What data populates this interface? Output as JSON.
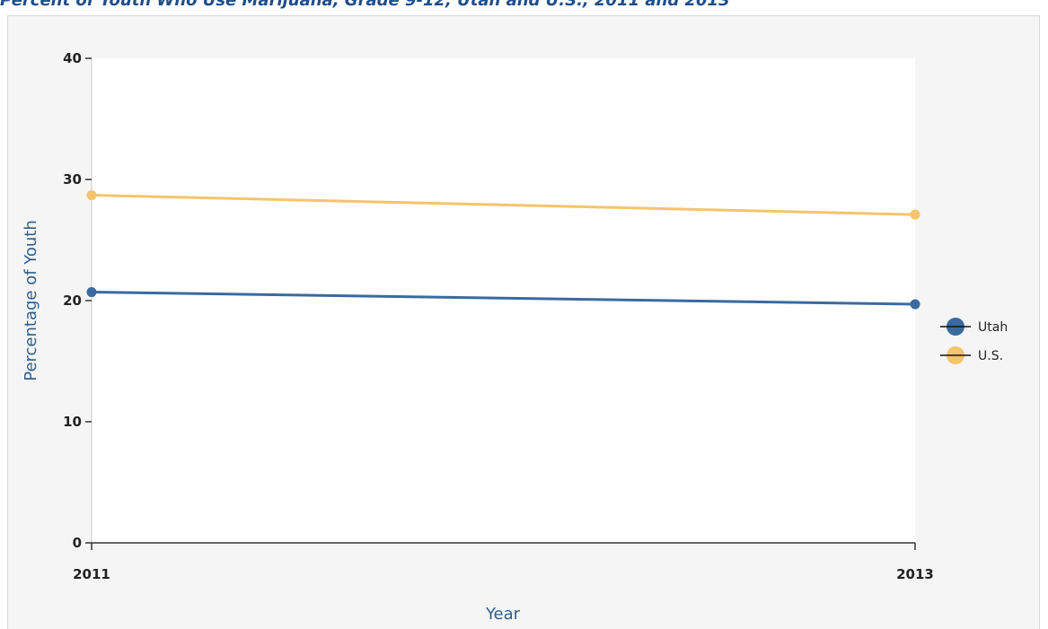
{
  "header": {
    "title": "Percent of Youth Who Use Marijuana, Grade 9-12, Utah and U.S., 2011 and 2013"
  },
  "chart_data": {
    "type": "line",
    "title": "",
    "xlabel": "Year",
    "ylabel": "Percentage of Youth",
    "x": [
      "2011",
      "2013"
    ],
    "ylim": [
      0,
      40
    ],
    "yticks": [
      0,
      10,
      20,
      30,
      40
    ],
    "grid": false,
    "legend_position": "right",
    "series": [
      {
        "name": "Utah",
        "color": "#3a6aa0",
        "values": [
          20.7,
          19.7
        ]
      },
      {
        "name": "U.S.",
        "color": "#f5c46b",
        "values": [
          28.7,
          27.1
        ]
      }
    ]
  }
}
